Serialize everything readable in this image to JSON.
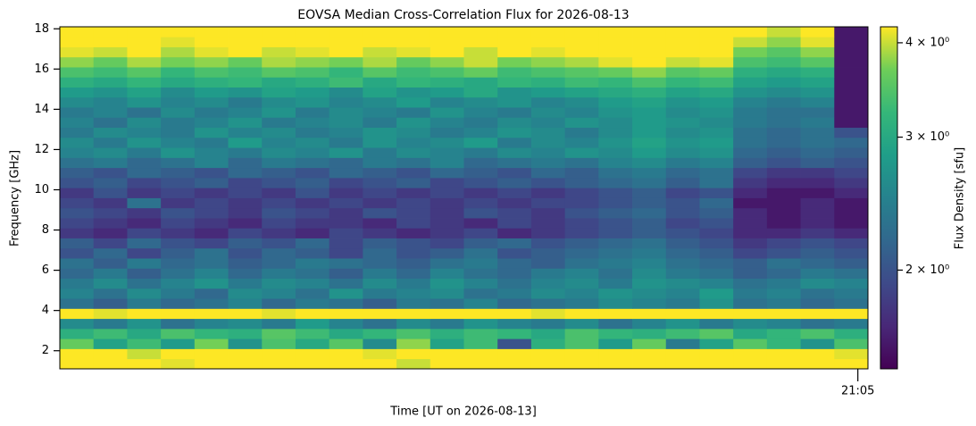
{
  "chart_data": {
    "type": "heatmap",
    "title": "EOVSA Median Cross-Correlation Flux for 2026-08-13",
    "xlabel": "Time [UT on 2026-08-13]",
    "ylabel": "Frequency [GHz]",
    "colorbar_label": "Flux Density [sfu]",
    "colormap": "viridis",
    "color_scale": "log",
    "clim": [
      1.48,
      4.2
    ],
    "cticks": [
      {
        "value": 2,
        "label": "2 × 10⁰"
      },
      {
        "value": 3,
        "label": "3 × 10⁰"
      },
      {
        "value": 4,
        "label": "4 × 10⁰"
      }
    ],
    "xlim": [
      0,
      24
    ],
    "xticks": [
      {
        "value": 23.7,
        "label": "21:05"
      }
    ],
    "ylim": [
      1.1,
      18.1
    ],
    "yticks": [
      2,
      4,
      6,
      8,
      10,
      12,
      14,
      16,
      18
    ],
    "y": [
      1.35,
      1.85,
      2.35,
      2.85,
      3.35,
      3.85,
      4.35,
      4.85,
      5.35,
      5.85,
      6.35,
      6.85,
      7.35,
      7.85,
      8.35,
      8.85,
      9.35,
      9.85,
      10.35,
      10.85,
      11.35,
      11.85,
      12.35,
      12.85,
      13.35,
      13.85,
      14.35,
      14.85,
      15.35,
      15.85,
      16.35,
      16.85,
      17.35,
      17.85
    ],
    "z": [
      [
        4.4,
        4.2,
        4.4,
        4.1,
        4.4,
        4.3,
        4.4,
        4.2,
        4.4,
        4.4,
        4.0,
        4.4,
        4.3,
        4.4,
        4.4,
        4.2,
        4.4,
        4.4,
        4.3,
        4.4,
        4.4,
        4.2,
        4.4,
        4.4
      ],
      [
        4.4,
        4.4,
        4.0,
        4.4,
        4.4,
        4.2,
        4.4,
        4.4,
        4.4,
        4.1,
        4.4,
        4.4,
        4.4,
        4.3,
        4.4,
        4.4,
        4.2,
        4.4,
        4.4,
        4.4,
        4.3,
        4.4,
        4.4,
        4.1
      ],
      [
        3.6,
        2.9,
        3.3,
        2.8,
        3.7,
        2.7,
        3.4,
        3.0,
        3.5,
        2.6,
        3.8,
        2.9,
        3.3,
        2.0,
        3.1,
        3.4,
        2.8,
        3.6,
        2.4,
        2.9,
        3.5,
        3.2,
        2.7,
        3.4
      ],
      [
        3.1,
        3.3,
        3.0,
        3.4,
        3.2,
        3.1,
        3.5,
        3.3,
        3.0,
        3.2,
        3.4,
        3.1,
        3.3,
        3.2,
        3.0,
        3.4,
        3.2,
        3.1,
        3.3,
        3.5,
        3.0,
        3.2,
        3.4,
        3.1
      ],
      [
        2.6,
        2.4,
        2.7,
        2.3,
        2.5,
        2.6,
        2.4,
        2.8,
        2.5,
        2.3,
        2.6,
        2.4,
        2.7,
        2.5,
        2.4,
        2.6,
        2.3,
        2.5,
        2.7,
        2.4,
        2.6,
        2.5,
        2.3,
        2.4
      ],
      [
        4.3,
        4.1,
        4.3,
        4.2,
        4.3,
        4.3,
        4.1,
        4.3,
        4.2,
        4.3,
        4.3,
        4.2,
        4.3,
        4.3,
        4.1,
        4.3,
        4.4,
        4.4,
        4.4,
        4.3,
        4.2,
        4.3,
        4.3,
        4.2
      ],
      [
        2.3,
        2.1,
        2.4,
        2.2,
        2.3,
        2.5,
        2.2,
        2.4,
        2.3,
        2.1,
        2.4,
        2.3,
        2.5,
        2.2,
        2.3,
        2.4,
        2.6,
        2.5,
        2.4,
        2.7,
        2.3,
        2.4,
        2.2,
        2.3
      ],
      [
        2.5,
        2.3,
        2.6,
        2.4,
        2.2,
        2.6,
        2.5,
        2.3,
        2.7,
        2.4,
        2.5,
        2.6,
        2.3,
        2.4,
        2.6,
        2.5,
        2.7,
        2.6,
        2.5,
        2.8,
        2.4,
        2.5,
        2.3,
        2.4
      ],
      [
        2.4,
        2.6,
        2.3,
        2.5,
        2.7,
        2.4,
        2.6,
        2.5,
        2.3,
        2.6,
        2.4,
        2.7,
        2.5,
        2.3,
        2.5,
        2.6,
        2.4,
        2.7,
        2.6,
        2.5,
        2.3,
        2.4,
        2.6,
        2.5
      ],
      [
        2.2,
        2.4,
        2.1,
        2.3,
        2.5,
        2.2,
        2.4,
        2.3,
        2.1,
        2.4,
        2.2,
        2.5,
        2.3,
        2.2,
        2.4,
        2.5,
        2.3,
        2.6,
        2.4,
        2.3,
        2.1,
        2.2,
        2.4,
        2.3
      ],
      [
        2.3,
        2.1,
        2.4,
        2.2,
        2.3,
        2.1,
        2.2,
        2.4,
        2.3,
        2.2,
        2.1,
        2.3,
        2.4,
        2.2,
        2.1,
        2.3,
        2.4,
        2.5,
        2.3,
        2.2,
        2.1,
        2.3,
        2.2,
        2.1
      ],
      [
        2.0,
        2.2,
        1.9,
        2.1,
        2.3,
        2.0,
        2.2,
        2.1,
        1.9,
        2.2,
        2.0,
        2.1,
        2.3,
        2.0,
        2.1,
        2.2,
        2.3,
        2.4,
        2.2,
        2.1,
        1.9,
        2.0,
        2.1,
        2.0
      ],
      [
        2.1,
        1.9,
        2.2,
        2.0,
        1.9,
        2.1,
        2.0,
        2.2,
        1.9,
        2.1,
        2.0,
        1.9,
        2.1,
        2.2,
        2.0,
        2.1,
        2.2,
        2.3,
        2.1,
        2.0,
        1.8,
        1.9,
        2.0,
        1.9
      ],
      [
        1.8,
        1.7,
        1.9,
        1.8,
        1.7,
        1.9,
        1.8,
        1.7,
        1.9,
        1.8,
        1.7,
        1.8,
        1.9,
        1.7,
        1.8,
        1.9,
        2.0,
        2.1,
        2.0,
        1.9,
        1.7,
        1.7,
        1.8,
        1.7
      ],
      [
        1.9,
        1.8,
        1.7,
        1.9,
        1.8,
        1.7,
        1.9,
        1.8,
        1.8,
        1.7,
        1.9,
        1.8,
        1.7,
        1.9,
        1.8,
        1.9,
        2.0,
        2.1,
        1.9,
        2.0,
        1.7,
        1.6,
        1.7,
        1.6
      ],
      [
        2.0,
        1.9,
        1.8,
        2.0,
        1.9,
        1.8,
        2.0,
        1.9,
        1.8,
        2.0,
        1.9,
        1.8,
        2.0,
        1.9,
        1.8,
        2.0,
        2.1,
        2.2,
        2.0,
        2.1,
        1.7,
        1.6,
        1.7,
        1.6
      ],
      [
        1.9,
        1.8,
        2.3,
        1.8,
        1.9,
        1.8,
        1.9,
        1.8,
        1.9,
        1.8,
        1.9,
        1.8,
        1.9,
        1.8,
        1.9,
        1.9,
        2.0,
        2.1,
        2.0,
        2.2,
        1.6,
        1.6,
        1.7,
        1.6
      ],
      [
        1.8,
        2.0,
        1.8,
        1.9,
        1.8,
        1.9,
        1.8,
        2.0,
        1.8,
        1.9,
        1.8,
        1.9,
        1.8,
        1.9,
        1.8,
        1.9,
        2.0,
        2.1,
        1.9,
        2.0,
        1.7,
        1.6,
        1.6,
        1.7
      ],
      [
        2.0,
        2.1,
        1.9,
        2.0,
        2.1,
        1.9,
        2.0,
        2.1,
        1.9,
        2.0,
        2.1,
        1.9,
        2.0,
        2.1,
        2.0,
        2.1,
        2.2,
        2.3,
        2.1,
        2.3,
        1.8,
        1.7,
        1.7,
        1.8
      ],
      [
        2.1,
        2.0,
        2.2,
        2.1,
        2.0,
        2.2,
        2.1,
        2.0,
        2.2,
        2.1,
        2.0,
        2.2,
        2.1,
        2.0,
        2.2,
        2.1,
        2.3,
        2.4,
        2.2,
        2.3,
        1.9,
        1.8,
        1.8,
        1.9
      ],
      [
        2.3,
        2.4,
        2.2,
        2.3,
        2.5,
        2.2,
        2.4,
        2.3,
        2.2,
        2.4,
        2.3,
        2.5,
        2.2,
        2.3,
        2.4,
        2.3,
        2.5,
        2.6,
        2.4,
        2.5,
        2.1,
        2.0,
        2.1,
        2.0
      ],
      [
        2.5,
        2.6,
        2.4,
        2.7,
        2.5,
        2.4,
        2.6,
        2.5,
        2.7,
        2.4,
        2.6,
        2.5,
        2.4,
        2.6,
        2.5,
        2.7,
        2.6,
        2.8,
        2.6,
        2.7,
        2.2,
        2.1,
        2.2,
        2.1
      ],
      [
        2.6,
        2.4,
        2.7,
        2.5,
        2.4,
        2.8,
        2.5,
        2.6,
        2.4,
        2.7,
        2.5,
        2.6,
        2.8,
        2.4,
        2.6,
        2.5,
        2.7,
        2.9,
        2.7,
        2.8,
        2.3,
        2.2,
        2.3,
        2.2
      ],
      [
        2.4,
        2.6,
        2.5,
        2.4,
        2.7,
        2.5,
        2.6,
        2.4,
        2.5,
        2.7,
        2.6,
        2.4,
        2.5,
        2.7,
        2.6,
        2.4,
        2.6,
        2.8,
        2.6,
        2.7,
        2.3,
        2.2,
        2.3,
        2.0
      ],
      [
        2.5,
        2.3,
        2.6,
        2.4,
        2.5,
        2.7,
        2.4,
        2.5,
        2.6,
        2.4,
        2.7,
        2.5,
        2.4,
        2.6,
        2.5,
        2.7,
        2.6,
        2.8,
        2.7,
        2.6,
        2.4,
        2.3,
        2.4,
        1.6
      ],
      [
        2.4,
        2.5,
        2.3,
        2.6,
        2.4,
        2.5,
        2.7,
        2.4,
        2.6,
        2.5,
        2.4,
        2.7,
        2.5,
        2.4,
        2.6,
        2.5,
        2.7,
        2.8,
        2.6,
        2.7,
        2.4,
        2.3,
        2.3,
        1.6
      ],
      [
        2.6,
        2.5,
        2.7,
        2.5,
        2.6,
        2.4,
        2.6,
        2.7,
        2.5,
        2.6,
        2.8,
        2.5,
        2.6,
        2.7,
        2.5,
        2.6,
        2.8,
        2.9,
        2.7,
        2.8,
        2.5,
        2.4,
        2.5,
        1.6
      ],
      [
        2.8,
        2.7,
        2.9,
        2.6,
        2.8,
        2.7,
        2.9,
        2.8,
        2.6,
        2.9,
        2.7,
        2.8,
        3.0,
        2.7,
        2.8,
        2.9,
        3.0,
        3.1,
        2.9,
        3.0,
        2.7,
        2.6,
        2.7,
        1.6
      ],
      [
        3.1,
        3.0,
        3.2,
        3.0,
        3.1,
        3.2,
        3.0,
        3.1,
        3.3,
        3.0,
        3.2,
        3.1,
        3.0,
        3.2,
        3.1,
        3.3,
        3.2,
        3.4,
        3.2,
        3.3,
        2.9,
        2.8,
        2.9,
        1.6
      ],
      [
        3.4,
        3.3,
        3.5,
        3.2,
        3.4,
        3.3,
        3.5,
        3.4,
        3.2,
        3.5,
        3.3,
        3.4,
        3.6,
        3.3,
        3.4,
        3.5,
        3.6,
        3.8,
        3.5,
        3.6,
        3.1,
        3.0,
        3.1,
        1.6
      ],
      [
        3.8,
        3.6,
        3.9,
        3.7,
        3.8,
        3.6,
        3.9,
        3.8,
        3.7,
        3.9,
        3.6,
        3.8,
        4.0,
        3.7,
        3.8,
        3.9,
        4.1,
        4.3,
        4.0,
        4.1,
        3.4,
        3.3,
        3.5,
        1.6
      ],
      [
        4.1,
        4.0,
        4.2,
        3.9,
        4.1,
        4.2,
        4.0,
        4.1,
        4.2,
        4.0,
        4.1,
        4.3,
        4.0,
        4.2,
        4.1,
        4.2,
        4.3,
        4.4,
        4.3,
        4.4,
        3.7,
        3.5,
        3.8,
        1.6
      ],
      [
        4.3,
        4.2,
        4.4,
        4.1,
        4.3,
        4.4,
        4.2,
        4.3,
        4.4,
        4.2,
        4.3,
        4.4,
        4.2,
        4.3,
        4.4,
        4.3,
        4.4,
        4.4,
        4.4,
        4.4,
        4.0,
        3.8,
        4.1,
        1.6
      ],
      [
        4.4,
        4.3,
        4.4,
        4.2,
        4.4,
        4.4,
        4.3,
        4.4,
        4.4,
        4.3,
        4.4,
        4.4,
        4.3,
        4.4,
        4.4,
        4.4,
        4.4,
        4.4,
        4.4,
        4.4,
        4.2,
        4.0,
        4.3,
        1.6
      ]
    ]
  }
}
